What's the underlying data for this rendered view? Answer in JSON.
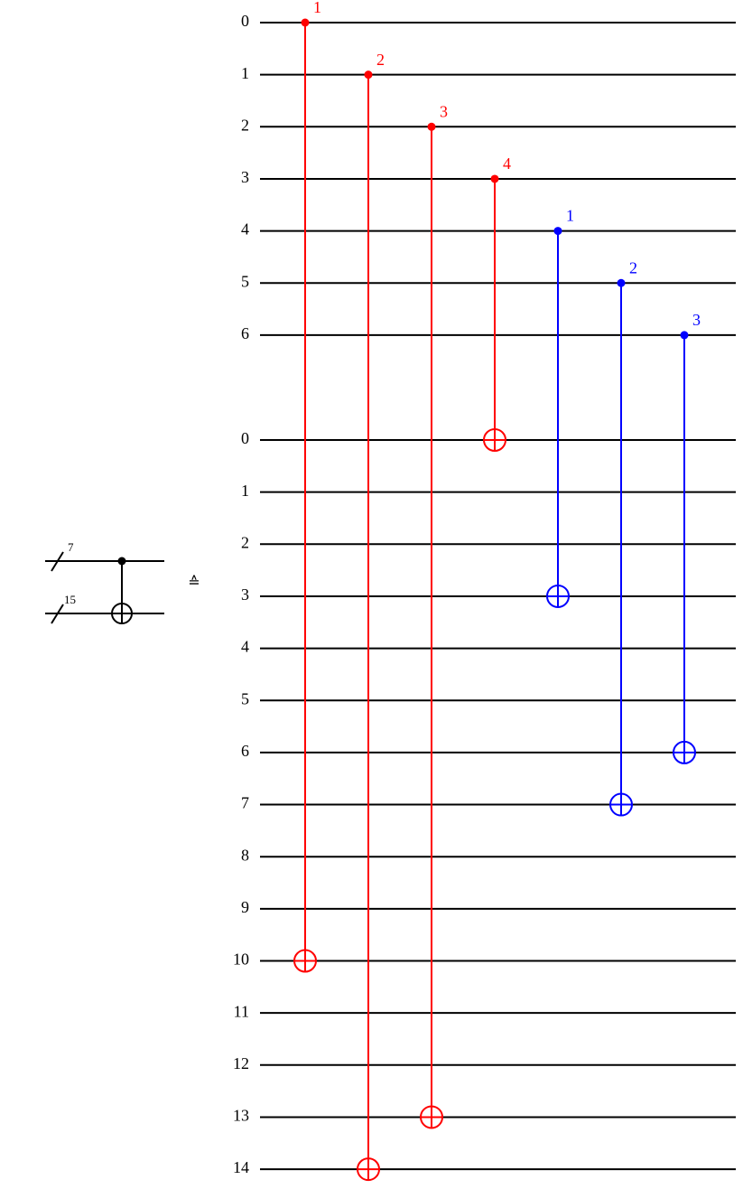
{
  "left_circuit": {
    "register_sizes": [
      7,
      15
    ]
  },
  "equivalence_symbol": "≙",
  "registers": [
    {
      "wires": [
        0,
        1,
        2,
        3,
        4,
        5,
        6
      ]
    },
    {
      "wires": [
        0,
        1,
        2,
        3,
        4,
        5,
        6,
        7,
        8,
        9,
        10,
        11,
        12,
        13,
        14
      ]
    }
  ],
  "gates": [
    {
      "label": 1,
      "control_wire": 0,
      "target_wire": 10,
      "color": "#ff0000"
    },
    {
      "label": 2,
      "control_wire": 1,
      "target_wire": 14,
      "color": "#ff0000"
    },
    {
      "label": 3,
      "control_wire": 2,
      "target_wire": 13,
      "color": "#ff0000"
    },
    {
      "label": 4,
      "control_wire": 3,
      "target_wire": 0,
      "color": "#ff0000"
    },
    {
      "label": 1,
      "control_wire": 4,
      "target_wire": 3,
      "color": "#0000ff"
    },
    {
      "label": 2,
      "control_wire": 5,
      "target_wire": 7,
      "color": "#0000ff"
    },
    {
      "label": 3,
      "control_wire": 6,
      "target_wire": 6,
      "color": "#0000ff"
    }
  ]
}
